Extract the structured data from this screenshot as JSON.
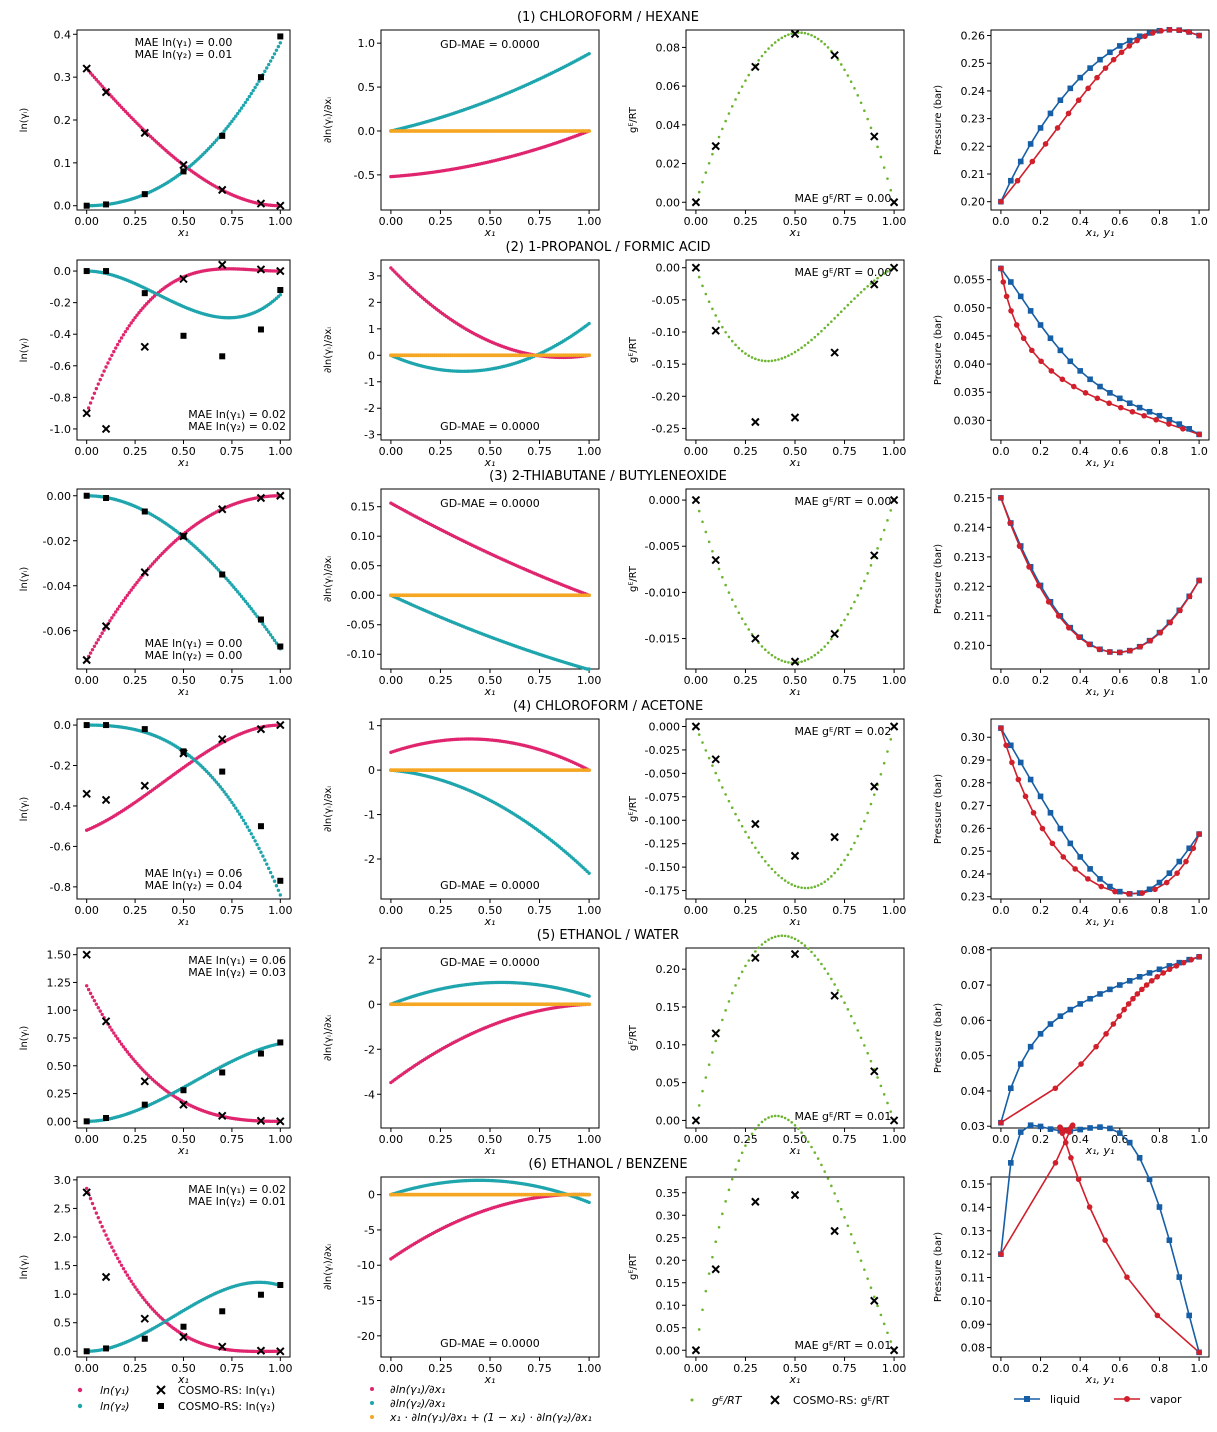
{
  "figure": {
    "colors": {
      "y1": "#e0256f",
      "y2": "#1fa5ad",
      "mix": "#f5a623",
      "ge": "#6bb52f",
      "liquid": "#165ea6",
      "vapor": "#d11f2c"
    },
    "column_labels": {
      "ln_y": "ln(γᵢ)",
      "dln": "∂ln(γᵢ)/∂xᵢ",
      "ge": "gᴱ/RT",
      "p": "Pressure (bar)",
      "x1": "x₁",
      "x1y1": "x₁, y₁"
    },
    "legends": {
      "col1": [
        "ln(γ₁)",
        "ln(γ₂)",
        "COSMO-RS: ln(γ₁)",
        "COSMO-RS: ln(γ₂)"
      ],
      "col2": [
        "∂ln(γ₁)/∂x₁",
        "∂ln(γ₂)/∂x₁",
        "x₁ · ∂ln(γ₁)/∂x₁ + (1 − x₁) · ∂ln(γ₂)/∂x₁"
      ],
      "col3": [
        "gᴱ/RT",
        "COSMO-RS: gᴱ/RT"
      ],
      "col4": [
        "liquid",
        "vapor"
      ]
    }
  },
  "chart_data": [
    {
      "type": "scatter",
      "row": 1,
      "title": "(1) CHLOROFORM / HEXANE",
      "ln": {
        "A12": 0.32,
        "A21": 0.38,
        "yticks": [
          0,
          0.1,
          0.2,
          0.3,
          0.4
        ],
        "ylim": [
          -0.01,
          0.41
        ],
        "cosmo_x": [
          0,
          0.1,
          0.3,
          0.5,
          0.7,
          0.9,
          1.0
        ],
        "cosmo_y1": [
          0.32,
          0.265,
          0.17,
          0.095,
          0.037,
          0.005,
          0
        ],
        "cosmo_y2": [
          0,
          0.003,
          0.027,
          0.08,
          0.163,
          0.3,
          0.395
        ],
        "mae": [
          "MAE ln(γ₁) = 0.00",
          "MAE ln(γ₂) = 0.01"
        ],
        "mae_pos": "top-center"
      },
      "dln": {
        "yticks": [
          -0.5,
          0,
          0.5,
          1.0
        ],
        "ylim": [
          -0.9,
          1.15
        ],
        "gd": "GD-MAE = 0.0000",
        "gd_pos": "top"
      },
      "ge": {
        "yticks": [
          0,
          0.02,
          0.04,
          0.06,
          0.08
        ],
        "ylim": [
          -0.004,
          0.089
        ],
        "cosmo_x": [
          0,
          0.1,
          0.3,
          0.5,
          0.7,
          0.9,
          1.0
        ],
        "cosmo_y": [
          0,
          0.029,
          0.07,
          0.087,
          0.076,
          0.034,
          0
        ],
        "mae": "MAE gᴱ/RT = 0.00",
        "mae_pos": "bottom"
      },
      "p": {
        "P1": 0.26,
        "P2": 0.2,
        "yticks": [
          0.2,
          0.21,
          0.22,
          0.23,
          0.24,
          0.25,
          0.26
        ],
        "ylim": [
          0.197,
          0.262
        ]
      }
    },
    {
      "type": "scatter",
      "row": 2,
      "title": "(2) 1-PROPANOL / FORMIC ACID",
      "ln": {
        "A12": -0.9,
        "A21": -0.15,
        "yticks": [
          -1.0,
          -0.8,
          -0.6,
          -0.4,
          -0.2,
          0.0
        ],
        "ylim": [
          -1.07,
          0.07
        ],
        "cosmo_x": [
          0,
          0.1,
          0.3,
          0.5,
          0.7,
          0.9,
          1.0
        ],
        "cosmo_y1": [
          -0.9,
          -1.0,
          -0.48,
          -0.05,
          0.04,
          0.01,
          0
        ],
        "cosmo_y2": [
          0,
          0,
          -0.14,
          -0.41,
          -0.54,
          -0.37,
          -0.12
        ],
        "mae": [
          "MAE ln(γ₁) = 0.02",
          "MAE ln(γ₂) = 0.02"
        ],
        "mae_pos": "bottom-right"
      },
      "dln": {
        "yticks": [
          -3,
          -2,
          -1,
          0,
          1,
          2,
          3
        ],
        "ylim": [
          -3.2,
          3.6
        ],
        "gd": "GD-MAE = 0.0000",
        "gd_pos": "bottom"
      },
      "ge": {
        "yticks": [
          -0.25,
          -0.2,
          -0.15,
          -0.1,
          -0.05,
          0.0
        ],
        "ylim": [
          -0.268,
          0.012
        ],
        "cosmo_x": [
          0,
          0.1,
          0.3,
          0.5,
          0.7,
          0.9,
          1.0
        ],
        "cosmo_y": [
          0,
          -0.098,
          -0.24,
          -0.233,
          -0.132,
          -0.026,
          0
        ],
        "mae": "MAE gᴱ/RT = 0.00",
        "mae_pos": "top"
      },
      "p": {
        "P1": 0.0275,
        "P2": 0.057,
        "yticks": [
          0.03,
          0.035,
          0.04,
          0.045,
          0.05,
          0.055
        ],
        "ylim": [
          0.0265,
          0.0585
        ]
      }
    },
    {
      "type": "scatter",
      "row": 3,
      "title": "(3) 2-THIABUTANE / BUTYLENEOXIDE",
      "ln": {
        "A12": -0.073,
        "A21": -0.068,
        "yticks": [
          -0.06,
          -0.04,
          -0.02,
          0.0
        ],
        "ylim": [
          -0.077,
          0.003
        ],
        "cosmo_x": [
          0,
          0.1,
          0.3,
          0.5,
          0.7,
          0.9,
          1.0
        ],
        "cosmo_y1": [
          -0.073,
          -0.058,
          -0.034,
          -0.018,
          -0.006,
          -0.001,
          0
        ],
        "cosmo_y2": [
          0,
          -0.001,
          -0.007,
          -0.018,
          -0.035,
          -0.055,
          -0.067
        ],
        "mae": [
          "MAE ln(γ₁) = 0.00",
          "MAE ln(γ₂) = 0.00"
        ],
        "mae_pos": "bottom-center"
      },
      "dln": {
        "yticks": [
          -0.1,
          -0.05,
          0,
          0.05,
          0.1,
          0.15
        ],
        "ylim": [
          -0.125,
          0.18
        ],
        "gd": "GD-MAE = 0.0000",
        "gd_pos": "top"
      },
      "ge": {
        "yticks": [
          -0.015,
          -0.01,
          -0.005,
          0.0
        ],
        "ylim": [
          -0.0183,
          0.0012
        ],
        "cosmo_x": [
          0,
          0.1,
          0.3,
          0.5,
          0.7,
          0.9,
          1.0
        ],
        "cosmo_y": [
          0,
          -0.0065,
          -0.015,
          -0.0175,
          -0.0145,
          -0.006,
          0
        ],
        "mae": "MAE gᴱ/RT = 0.00",
        "mae_pos": "top"
      },
      "p": {
        "P1": 0.2122,
        "P2": 0.215,
        "yticks": [
          0.21,
          0.211,
          0.212,
          0.213,
          0.214,
          0.215
        ],
        "ylim": [
          0.2092,
          0.2153
        ]
      }
    },
    {
      "type": "scatter",
      "row": 4,
      "title": "(4) CHLOROFORM / ACETONE",
      "ln": {
        "A12": -0.52,
        "A21": -0.84,
        "yticks": [
          -0.8,
          -0.6,
          -0.4,
          -0.2,
          0.0
        ],
        "ylim": [
          -0.86,
          0.03
        ],
        "cosmo_x": [
          0,
          0.1,
          0.3,
          0.5,
          0.7,
          0.9,
          1.0
        ],
        "cosmo_y1": [
          -0.34,
          -0.37,
          -0.3,
          -0.14,
          -0.07,
          -0.02,
          0
        ],
        "cosmo_y2": [
          0,
          0,
          -0.02,
          -0.13,
          -0.23,
          -0.5,
          -0.77
        ],
        "mae": [
          "MAE ln(γ₁) = 0.06",
          "MAE ln(γ₂) = 0.04"
        ],
        "mae_pos": "bottom-center"
      },
      "dln": {
        "yticks": [
          -2,
          -1,
          0,
          1
        ],
        "ylim": [
          -2.9,
          1.15
        ],
        "gd": "GD-MAE = 0.0000",
        "gd_pos": "bottom"
      },
      "ge": {
        "yticks": [
          -0.175,
          -0.15,
          -0.125,
          -0.1,
          -0.075,
          -0.05,
          -0.025,
          0.0
        ],
        "ylim": [
          -0.184,
          0.008
        ],
        "cosmo_x": [
          0,
          0.1,
          0.3,
          0.5,
          0.7,
          0.9,
          1.0
        ],
        "cosmo_y": [
          0,
          -0.035,
          -0.104,
          -0.138,
          -0.118,
          -0.064,
          0
        ],
        "mae": "MAE gᴱ/RT = 0.02",
        "mae_pos": "top"
      },
      "p": {
        "P1": 0.2575,
        "P2": 0.304,
        "yticks": [
          0.23,
          0.24,
          0.25,
          0.26,
          0.27,
          0.28,
          0.29,
          0.3
        ],
        "ylim": [
          0.229,
          0.308
        ]
      }
    },
    {
      "type": "scatter",
      "row": 5,
      "title": "(5) ETHANOL / WATER",
      "ln": {
        "A12": 1.22,
        "A21": 0.7,
        "yticks": [
          0,
          0.25,
          0.5,
          0.75,
          1.0,
          1.25,
          1.5
        ],
        "ylim": [
          -0.06,
          1.56
        ],
        "cosmo_x": [
          0,
          0.1,
          0.3,
          0.5,
          0.7,
          0.9,
          1.0
        ],
        "cosmo_y1": [
          1.5,
          0.9,
          0.36,
          0.15,
          0.05,
          0.005,
          0
        ],
        "cosmo_y2": [
          0,
          0.03,
          0.15,
          0.28,
          0.44,
          0.61,
          0.71
        ],
        "mae": [
          "MAE ln(γ₁) = 0.06",
          "MAE ln(γ₂) = 0.03"
        ],
        "mae_pos": "top-right"
      },
      "dln": {
        "yticks": [
          -4,
          -2,
          0,
          2
        ],
        "ylim": [
          -5.5,
          2.5
        ],
        "gd": "GD-MAE = 0.0000",
        "gd_pos": "top"
      },
      "ge": {
        "yticks": [
          0,
          0.05,
          0.1,
          0.15,
          0.2
        ],
        "ylim": [
          -0.01,
          0.228
        ],
        "cosmo_x": [
          0,
          0.1,
          0.3,
          0.5,
          0.7,
          0.9,
          1.0
        ],
        "cosmo_y": [
          0,
          0.115,
          0.215,
          0.22,
          0.165,
          0.065,
          0
        ],
        "mae": "MAE gᴱ/RT = 0.01",
        "mae_pos": "bottom"
      },
      "p": {
        "P1": 0.078,
        "P2": 0.031,
        "yticks": [
          0.03,
          0.04,
          0.05,
          0.06,
          0.07,
          0.08
        ],
        "ylim": [
          0.0295,
          0.0805
        ]
      }
    },
    {
      "type": "scatter",
      "row": 6,
      "title": "(6) ETHANOL / BENZENE",
      "ln": {
        "A12": 2.85,
        "A21": 1.15,
        "yticks": [
          0,
          0.5,
          1.0,
          1.5,
          2.0,
          2.5,
          3.0
        ],
        "ylim": [
          -0.1,
          3.05
        ],
        "cosmo_x": [
          0,
          0.1,
          0.3,
          0.5,
          0.7,
          0.9,
          1.0
        ],
        "cosmo_y1": [
          2.78,
          1.3,
          0.57,
          0.25,
          0.08,
          0.01,
          0
        ],
        "cosmo_y2": [
          0,
          0.05,
          0.22,
          0.43,
          0.7,
          0.99,
          1.16
        ],
        "mae": [
          "MAE ln(γ₁) = 0.02",
          "MAE ln(γ₂) = 0.01"
        ],
        "mae_pos": "top-right"
      },
      "dln": {
        "yticks": [
          -20,
          -15,
          -10,
          -5,
          0
        ],
        "ylim": [
          -23,
          2.5
        ],
        "gd": "GD-MAE = 0.0000",
        "gd_pos": "bottom"
      },
      "ge": {
        "yticks": [
          0,
          0.05,
          0.1,
          0.15,
          0.2,
          0.25,
          0.3,
          0.35
        ],
        "ylim": [
          -0.015,
          0.385
        ],
        "cosmo_x": [
          0,
          0.1,
          0.3,
          0.5,
          0.7,
          0.9,
          1.0
        ],
        "cosmo_y": [
          0,
          0.18,
          0.33,
          0.345,
          0.265,
          0.11,
          0
        ],
        "mae": "MAE gᴱ/RT = 0.01",
        "mae_pos": "bottom"
      },
      "p": {
        "P1": 0.078,
        "P2": 0.12,
        "yticks": [
          0.08,
          0.09,
          0.1,
          0.11,
          0.12,
          0.13,
          0.14,
          0.15
        ],
        "ylim": [
          0.076,
          0.153
        ]
      }
    }
  ]
}
